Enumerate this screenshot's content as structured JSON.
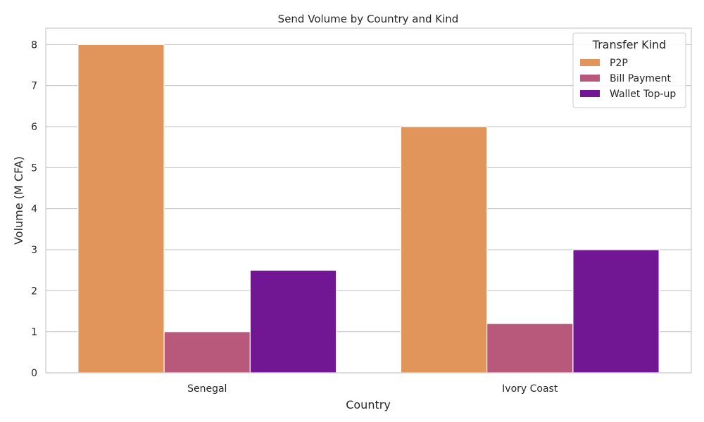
{
  "chart_data": {
    "type": "bar",
    "title": "Send Volume by Country and Kind",
    "xlabel": "Country",
    "ylabel": "Volume (M CFA)",
    "categories": [
      "Senegal",
      "Ivory Coast"
    ],
    "series": [
      {
        "name": "P2P",
        "values": [
          8.0,
          6.0
        ],
        "color": "#e2955a"
      },
      {
        "name": "Bill Payment",
        "values": [
          1.0,
          1.2
        ],
        "color": "#b8587a"
      },
      {
        "name": "Wallet Top-up",
        "values": [
          2.5,
          3.0
        ],
        "color": "#721793"
      }
    ],
    "ylim": [
      0,
      8.4
    ],
    "yticks": [
      0,
      1,
      2,
      3,
      4,
      5,
      6,
      7,
      8
    ],
    "grid": true,
    "legend": {
      "title": "Transfer Kind",
      "placement": "top-right"
    }
  }
}
